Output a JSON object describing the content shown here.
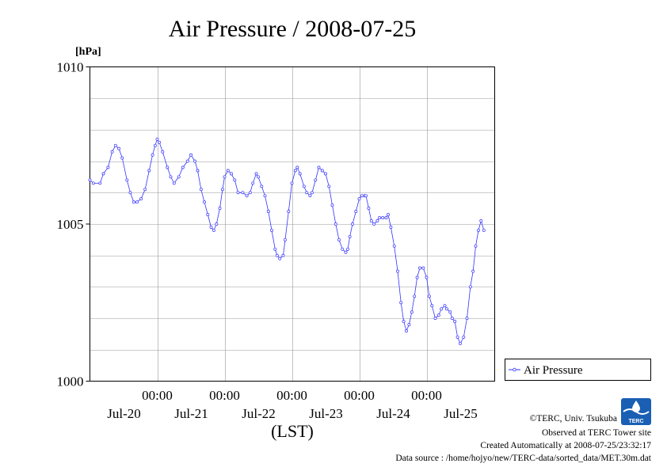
{
  "chart_data": {
    "type": "line",
    "title": "Air Pressure / 2008-07-25",
    "ylabel": "[hPa]",
    "xlabel": "(LST)",
    "ylim": [
      1000,
      1010
    ],
    "y_major_ticks": [
      {
        "value": 1010,
        "label": "1010"
      },
      {
        "value": 1005,
        "label": "1005"
      },
      {
        "value": 1000,
        "label": "1000"
      }
    ],
    "y_minor_step": 1,
    "x_range_days": [
      0,
      6
    ],
    "x_ticks": [
      {
        "day": 1,
        "time": "00:00",
        "date": "Jul-20"
      },
      {
        "day": 2,
        "time": "00:00",
        "date": "Jul-21"
      },
      {
        "day": 3,
        "time": "00:00",
        "date": "Jul-22"
      },
      {
        "day": 4,
        "time": "00:00",
        "date": "Jul-23"
      },
      {
        "day": 5,
        "time": "00:00",
        "date": "Jul-24"
      },
      {
        "day": 6,
        "time": "",
        "date": "Jul-25"
      }
    ],
    "grid": true,
    "legend_position": "right",
    "series": [
      {
        "name": "Air Pressure",
        "color": "#3333ff",
        "points": [
          [
            0.0,
            1006.4
          ],
          [
            0.05,
            1006.3
          ],
          [
            0.15,
            1006.3
          ],
          [
            0.2,
            1006.6
          ],
          [
            0.27,
            1006.8
          ],
          [
            0.33,
            1007.3
          ],
          [
            0.38,
            1007.5
          ],
          [
            0.43,
            1007.4
          ],
          [
            0.48,
            1007.1
          ],
          [
            0.55,
            1006.4
          ],
          [
            0.6,
            1006.0
          ],
          [
            0.65,
            1005.7
          ],
          [
            0.7,
            1005.7
          ],
          [
            0.76,
            1005.8
          ],
          [
            0.82,
            1006.1
          ],
          [
            0.88,
            1006.7
          ],
          [
            0.93,
            1007.2
          ],
          [
            0.97,
            1007.5
          ],
          [
            1.0,
            1007.7
          ],
          [
            1.03,
            1007.6
          ],
          [
            1.08,
            1007.3
          ],
          [
            1.15,
            1006.8
          ],
          [
            1.2,
            1006.5
          ],
          [
            1.25,
            1006.3
          ],
          [
            1.32,
            1006.5
          ],
          [
            1.38,
            1006.8
          ],
          [
            1.45,
            1007.0
          ],
          [
            1.5,
            1007.2
          ],
          [
            1.56,
            1007.0
          ],
          [
            1.6,
            1006.7
          ],
          [
            1.65,
            1006.1
          ],
          [
            1.7,
            1005.7
          ],
          [
            1.75,
            1005.3
          ],
          [
            1.8,
            1004.9
          ],
          [
            1.84,
            1004.8
          ],
          [
            1.88,
            1005.0
          ],
          [
            1.93,
            1005.5
          ],
          [
            1.97,
            1006.1
          ],
          [
            2.0,
            1006.5
          ],
          [
            2.05,
            1006.7
          ],
          [
            2.1,
            1006.6
          ],
          [
            2.15,
            1006.4
          ],
          [
            2.2,
            1006.0
          ],
          [
            2.27,
            1006.0
          ],
          [
            2.33,
            1005.9
          ],
          [
            2.38,
            1006.0
          ],
          [
            2.42,
            1006.3
          ],
          [
            2.47,
            1006.6
          ],
          [
            2.5,
            1006.5
          ],
          [
            2.55,
            1006.2
          ],
          [
            2.6,
            1005.9
          ],
          [
            2.65,
            1005.4
          ],
          [
            2.7,
            1004.8
          ],
          [
            2.75,
            1004.2
          ],
          [
            2.78,
            1004.0
          ],
          [
            2.82,
            1003.9
          ],
          [
            2.87,
            1004.0
          ],
          [
            2.9,
            1004.5
          ],
          [
            2.95,
            1005.4
          ],
          [
            3.0,
            1006.3
          ],
          [
            3.05,
            1006.7
          ],
          [
            3.08,
            1006.8
          ],
          [
            3.12,
            1006.6
          ],
          [
            3.18,
            1006.2
          ],
          [
            3.22,
            1006.0
          ],
          [
            3.27,
            1005.9
          ],
          [
            3.3,
            1006.0
          ],
          [
            3.35,
            1006.4
          ],
          [
            3.4,
            1006.8
          ],
          [
            3.45,
            1006.7
          ],
          [
            3.5,
            1006.6
          ],
          [
            3.55,
            1006.2
          ],
          [
            3.6,
            1005.6
          ],
          [
            3.65,
            1005.0
          ],
          [
            3.7,
            1004.5
          ],
          [
            3.75,
            1004.2
          ],
          [
            3.8,
            1004.1
          ],
          [
            3.83,
            1004.2
          ],
          [
            3.86,
            1004.6
          ],
          [
            3.9,
            1005.0
          ],
          [
            3.95,
            1005.4
          ],
          [
            4.0,
            1005.8
          ],
          [
            4.04,
            1005.9
          ],
          [
            4.08,
            1005.9
          ],
          [
            4.1,
            1005.9
          ],
          [
            4.14,
            1005.5
          ],
          [
            4.18,
            1005.1
          ],
          [
            4.22,
            1005.0
          ],
          [
            4.27,
            1005.1
          ],
          [
            4.3,
            1005.2
          ],
          [
            4.35,
            1005.2
          ],
          [
            4.4,
            1005.2
          ],
          [
            4.43,
            1005.3
          ],
          [
            4.47,
            1004.9
          ],
          [
            4.52,
            1004.3
          ],
          [
            4.57,
            1003.5
          ],
          [
            4.62,
            1002.5
          ],
          [
            4.66,
            1001.9
          ],
          [
            4.7,
            1001.6
          ],
          [
            4.74,
            1001.8
          ],
          [
            4.78,
            1002.2
          ],
          [
            4.82,
            1002.7
          ],
          [
            4.86,
            1003.3
          ],
          [
            4.9,
            1003.6
          ],
          [
            4.95,
            1003.6
          ],
          [
            5.0,
            1003.3
          ],
          [
            5.04,
            1002.7
          ],
          [
            5.08,
            1002.4
          ],
          [
            5.13,
            1002.0
          ],
          [
            5.18,
            1002.1
          ],
          [
            5.22,
            1002.3
          ],
          [
            5.27,
            1002.4
          ],
          [
            5.3,
            1002.3
          ],
          [
            5.35,
            1002.2
          ],
          [
            5.38,
            1002.0
          ],
          [
            5.42,
            1001.9
          ],
          [
            5.46,
            1001.4
          ],
          [
            5.5,
            1001.2
          ],
          [
            5.55,
            1001.4
          ],
          [
            5.6,
            1002.0
          ],
          [
            5.65,
            1003.0
          ],
          [
            5.69,
            1003.5
          ],
          [
            5.73,
            1004.3
          ],
          [
            5.77,
            1004.8
          ],
          [
            5.81,
            1005.1
          ],
          [
            5.85,
            1004.8
          ]
        ]
      }
    ]
  },
  "credits": {
    "copyright": "©TERC, Univ. Tsukuba",
    "observed": "Observed at TERC Tower site",
    "created": "Created Automatically at 2008-07-25/23:32:17",
    "source": "Data source : /home/hojyo/new/TERC-data/sorted_data/MET.30m.dat",
    "logo_text": "TERC"
  }
}
